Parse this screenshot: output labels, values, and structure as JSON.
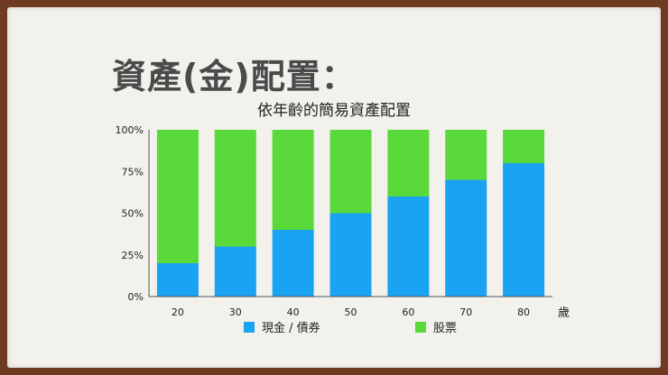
{
  "slide": {
    "title": "資產(金)配置："
  },
  "chart_data": {
    "type": "bar",
    "stacked": true,
    "title": "依年齡的簡易資產配置",
    "xlabel": "",
    "x_unit": "歲",
    "ylabel": "",
    "ylim": [
      0,
      100
    ],
    "yticks": [
      "0%",
      "25%",
      "50%",
      "75%",
      "100%"
    ],
    "categories": [
      "20",
      "30",
      "40",
      "50",
      "60",
      "70",
      "80"
    ],
    "series": [
      {
        "name": "現金 / 債券",
        "values": [
          20,
          30,
          40,
          50,
          60,
          70,
          80
        ],
        "color": "#1aa3f2"
      },
      {
        "name": "股票",
        "values": [
          80,
          70,
          60,
          50,
          40,
          30,
          20
        ],
        "color": "#5ad93a"
      }
    ],
    "grid": false,
    "legend_position": "bottom"
  }
}
